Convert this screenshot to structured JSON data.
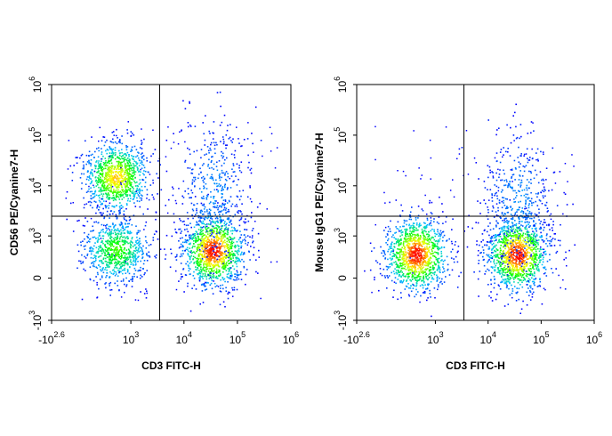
{
  "chart_data": [
    {
      "type": "scatter",
      "subtype": "flow-cytometry-density-dot-plot",
      "xlabel": "CD3 FITC-H",
      "ylabel": "CD56 PE/Cyanine7-H",
      "x_scale": "biexponential",
      "y_scale": "biexponential",
      "xlim": [
        -398,
        1000000
      ],
      "ylim": [
        -1000,
        1000000
      ],
      "x_ticks": [
        {
          "base": "-10",
          "exp": "2.6"
        },
        {
          "base": "10",
          "exp": "3"
        },
        {
          "base": "10",
          "exp": "4"
        },
        {
          "base": "10",
          "exp": "5"
        },
        {
          "base": "10",
          "exp": "6"
        }
      ],
      "y_ticks": [
        {
          "base": "-10",
          "exp": "3"
        },
        {
          "base": "0",
          "exp": ""
        },
        {
          "base": "10",
          "exp": "3"
        },
        {
          "base": "10",
          "exp": "4"
        },
        {
          "base": "10",
          "exp": "5"
        },
        {
          "base": "10",
          "exp": "6"
        }
      ],
      "quadrant_gate": {
        "x": 3500,
        "y": 2500
      },
      "color_scale": [
        "#0000ff",
        "#00c8ff",
        "#00ff00",
        "#ffff00",
        "#ff0000"
      ],
      "populations": [
        {
          "x": 500,
          "y": 15000,
          "density": "high"
        },
        {
          "x": 500,
          "y": 500,
          "density": "medium"
        },
        {
          "x": 35000,
          "y": 500,
          "density": "very-high"
        },
        {
          "x": 35000,
          "y": 8000,
          "density": "low"
        }
      ]
    },
    {
      "type": "scatter",
      "subtype": "flow-cytometry-density-dot-plot",
      "xlabel": "CD3 FITC-H",
      "ylabel": "Mouse IgG1 PE/Cyanine7-H",
      "x_scale": "biexponential",
      "y_scale": "biexponential",
      "xlim": [
        -398,
        1000000
      ],
      "ylim": [
        -1000,
        1000000
      ],
      "x_ticks": [
        {
          "base": "-10",
          "exp": "2.6"
        },
        {
          "base": "10",
          "exp": "3"
        },
        {
          "base": "10",
          "exp": "4"
        },
        {
          "base": "10",
          "exp": "5"
        },
        {
          "base": "10",
          "exp": "6"
        }
      ],
      "y_ticks": [
        {
          "base": "-10",
          "exp": "3"
        },
        {
          "base": "0",
          "exp": ""
        },
        {
          "base": "10",
          "exp": "3"
        },
        {
          "base": "10",
          "exp": "4"
        },
        {
          "base": "10",
          "exp": "5"
        },
        {
          "base": "10",
          "exp": "6"
        }
      ],
      "quadrant_gate": {
        "x": 3500,
        "y": 2500
      },
      "color_scale": [
        "#0000ff",
        "#00c8ff",
        "#00ff00",
        "#ffff00",
        "#ff0000"
      ],
      "populations": [
        {
          "x": 400,
          "y": 400,
          "density": "very-high"
        },
        {
          "x": 35000,
          "y": 400,
          "density": "very-high"
        },
        {
          "x": 35000,
          "y": 5000,
          "density": "low"
        }
      ]
    }
  ]
}
